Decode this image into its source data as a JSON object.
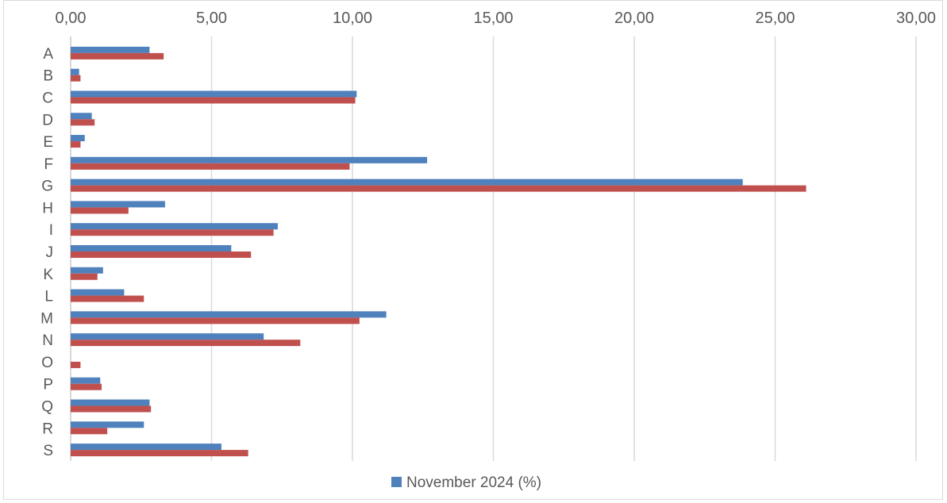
{
  "chart_data": {
    "type": "bar",
    "orientation": "horizontal",
    "title": "",
    "xlabel": "",
    "ylabel": "",
    "xlim": [
      0,
      30
    ],
    "x_ticks": [
      "0,00",
      "5,00",
      "10,00",
      "15,00",
      "20,00",
      "25,00",
      "30,00"
    ],
    "x_axis_position": "top",
    "grid": "vertical",
    "categories": [
      "A",
      "B",
      "C",
      "D",
      "E",
      "F",
      "G",
      "H",
      "I",
      "J",
      "K",
      "L",
      "M",
      "N",
      "O",
      "P",
      "Q",
      "R",
      "S"
    ],
    "series": [
      {
        "name": "November 2024 (%)",
        "color": "#4f81bd",
        "values": [
          2.8,
          0.3,
          10.15,
          0.75,
          0.5,
          12.65,
          23.85,
          3.35,
          7.35,
          5.7,
          1.15,
          1.9,
          11.2,
          6.85,
          0.0,
          1.05,
          2.8,
          2.6,
          5.35
        ]
      },
      {
        "name": "",
        "color": "#c0504d",
        "values": [
          3.3,
          0.35,
          10.1,
          0.85,
          0.35,
          9.9,
          26.1,
          2.05,
          7.2,
          6.4,
          0.95,
          2.6,
          10.25,
          8.15,
          0.35,
          1.1,
          2.85,
          1.3,
          6.3
        ]
      }
    ],
    "legend": {
      "position": "bottom",
      "entries": [
        "November 2024 (%)"
      ]
    }
  }
}
